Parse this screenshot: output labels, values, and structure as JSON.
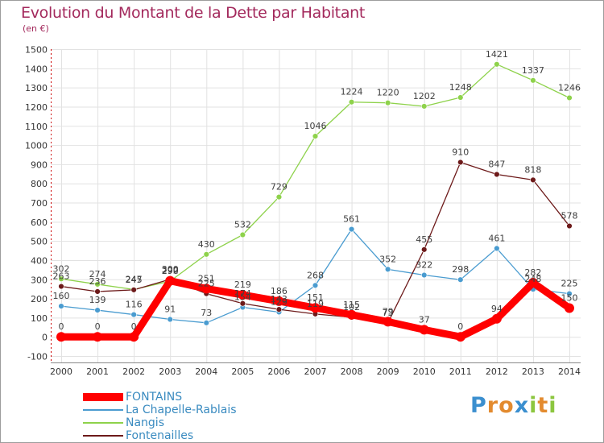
{
  "title": "Evolution du Montant de la Dette par Habitant",
  "unit": "(en €)",
  "brand": {
    "text": "Proxiti",
    "letter_colors": [
      "#3b8fcf",
      "#e38b2f",
      "#e38b2f",
      "#3b8fcf",
      "#8cc63f",
      "#e38b2f",
      "#8cc63f"
    ]
  },
  "chart_data": {
    "type": "line",
    "x": [
      "2000",
      "2001",
      "2002",
      "2003",
      "2004",
      "2005",
      "2006",
      "2007",
      "2008",
      "2009",
      "2010",
      "2011",
      "2012",
      "2013",
      "2014"
    ],
    "ylim": [
      -100,
      1500
    ],
    "yticks": [
      "-100",
      "0",
      "100",
      "200",
      "300",
      "400",
      "500",
      "600",
      "700",
      "800",
      "900",
      "1000",
      "1100",
      "1200",
      "1300",
      "1400",
      "1500"
    ],
    "grid": true,
    "legend_position": "bottom-left",
    "series": [
      {
        "name": "FONTAINS",
        "color": "#ff0000",
        "values": [
          0,
          0,
          0,
          292,
          251,
          219,
          186,
          151,
          115,
          79,
          37,
          0,
          94,
          282,
          150
        ],
        "labels": [
          "0",
          "0",
          "0",
          "292",
          "251",
          "219",
          "186",
          "151",
          "115",
          "79",
          "37",
          "0",
          "94",
          "282",
          "150"
        ]
      },
      {
        "name": "La Chapelle-Rablais",
        "color": "#4a9cd0",
        "values": [
          160,
          139,
          116,
          91,
          73,
          154,
          129,
          268,
          561,
          352,
          322,
          298,
          461,
          248,
          225
        ],
        "labels": [
          "160",
          "139",
          "116",
          "91",
          "73",
          "154",
          "129",
          "268",
          "561",
          "352",
          "322",
          "298",
          "461",
          "248",
          "225"
        ]
      },
      {
        "name": "Nangis",
        "color": "#8ed24b",
        "values": [
          302,
          274,
          247,
          290,
          430,
          532,
          729,
          1046,
          1224,
          1220,
          1202,
          1248,
          1421,
          1337,
          1246
        ],
        "labels": [
          "302",
          "274",
          "247",
          "290",
          "430",
          "532",
          "729",
          "1046",
          "1224",
          "1220",
          "1202",
          "1248",
          "1421",
          "1337",
          "1246"
        ]
      },
      {
        "name": "Fontenailles",
        "color": "#6d1a1a",
        "values": [
          263,
          236,
          245,
          300,
          225,
          174,
          143,
          119,
          102,
          73,
          455,
          910,
          847,
          818,
          578
        ],
        "labels": [
          "263",
          "236",
          "245",
          "300",
          "225",
          "174",
          "143",
          "119",
          "102",
          "73",
          "455",
          "910",
          "847",
          "818",
          "578"
        ]
      }
    ]
  }
}
